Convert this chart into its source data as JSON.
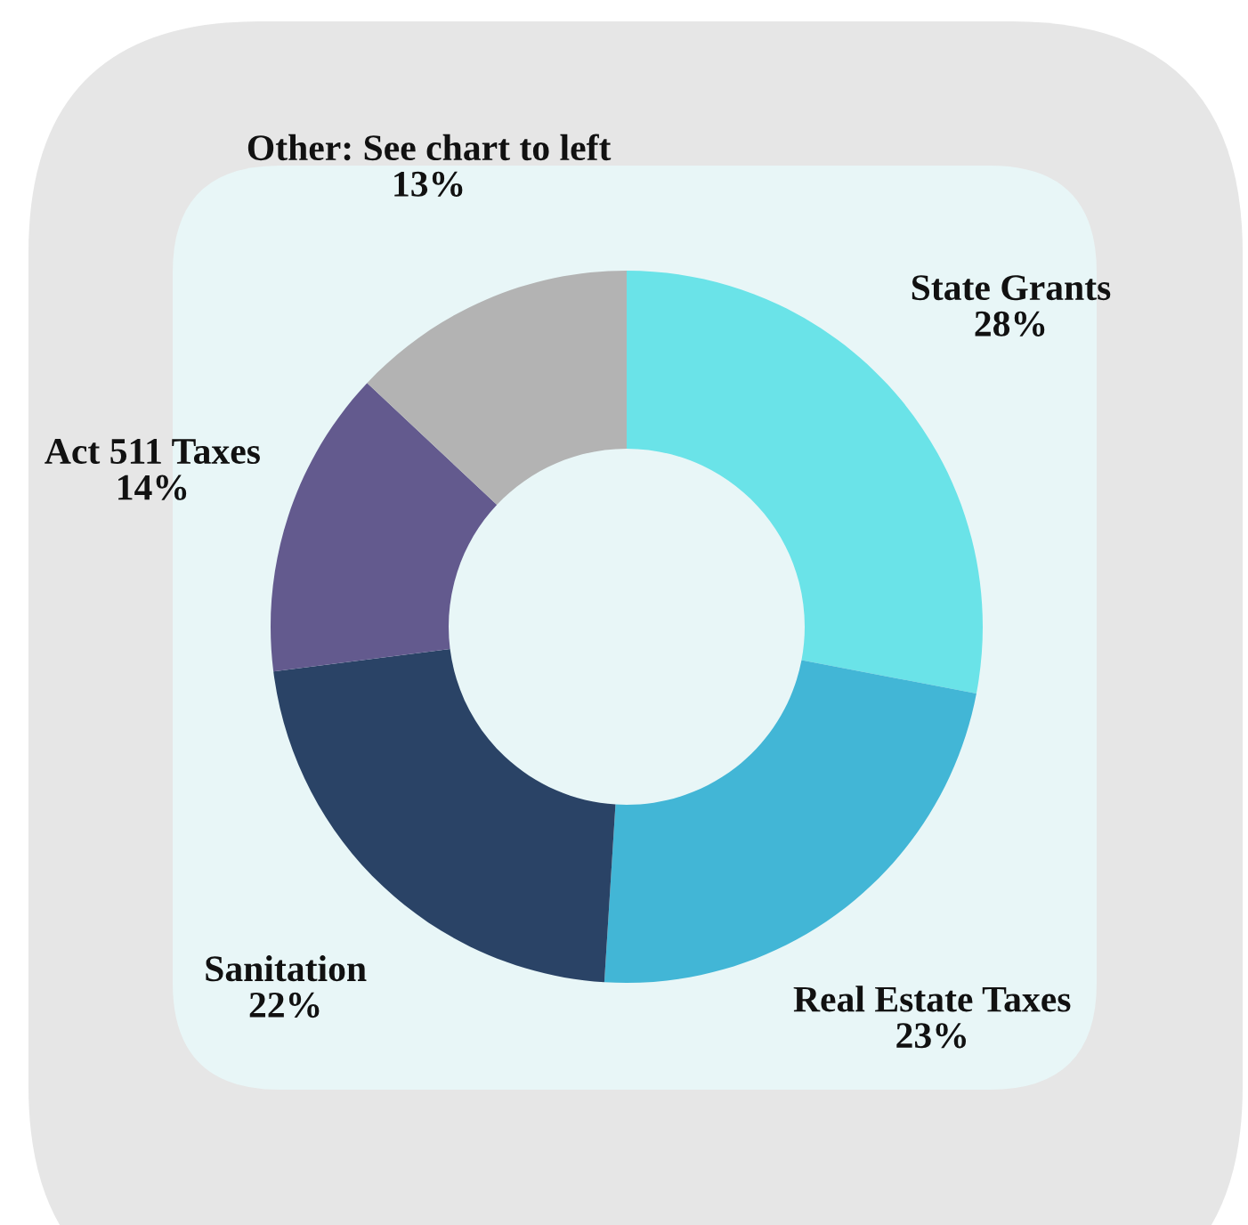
{
  "chart_data": {
    "type": "donut",
    "categories": [
      "State Grants",
      "Real Estate Taxes",
      "Sanitation",
      "Act 511 Taxes",
      "Other: See chart to left"
    ],
    "values": [
      28,
      23,
      22,
      14,
      13
    ],
    "value_labels": [
      "28%",
      "23%",
      "22%",
      "14%",
      "13%"
    ],
    "colors": [
      "#6ae3e8",
      "#42b6d6",
      "#2a4366",
      "#635a8e",
      "#b3b3b3"
    ],
    "legend": false
  }
}
